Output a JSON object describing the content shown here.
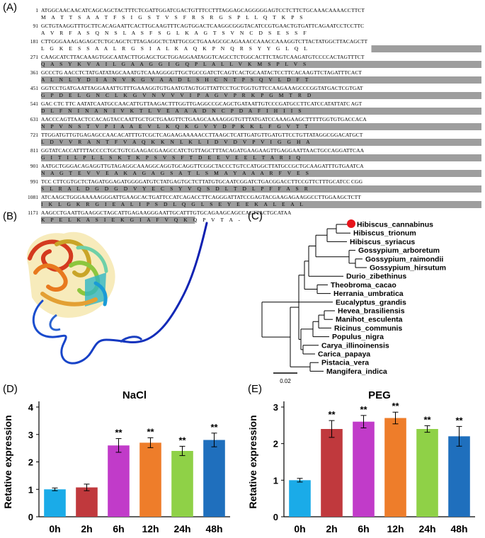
{
  "panels": {
    "A": "(A)",
    "B": "(B)",
    "C": "(C)",
    "D": "(D)",
    "E": "(E)"
  },
  "sequence_rows": [
    {
      "num": "1",
      "nt": "ATGGCAACAACATCAGCAGCTACTTTCTCGATTGGATCGACTGTTTCCTTTAGGAGCAGGGGGAGTCCTCTTCTGCAAACAAAACCTTCT",
      "aa": "M A T T S A A T F S I G S T V S F R S R G S P L L Q T K P S",
      "hl": "none"
    },
    {
      "num": "91",
      "nt": "GCTGTAAGGTTTGCTTCACAGAATTCACTTGCAAGTTTCAGTGGACTCAAGGCGGGTACATCCGTGAACTGTGATTCAGAATCCTCCTTC",
      "aa": "A V R F A S Q N S L A S F S G L K A G T S V N C D S E S S F",
      "hl": "none"
    },
    {
      "num": "181",
      "nt": "CTTGGGAAAGAGAGCTCTGCAGCTCTTAGAGGCTCTATTGCGCTGAAAGCGCAGAAACCAAACCAAAGGTCTTACTATGGCTTACAGCTT",
      "aa": "L G K E S S A A L R G S I A L K A Q K P N Q R S Y Y G L Q L",
      "hl": "part"
    },
    {
      "num": "271",
      "nt": "CAAGCATCTTACAAAGTGGCAATACTTGGAGCTGCTGGAGGAATAGGTCAGCCTCTGGCACTTCTAGTCAAGATGTCCCCACTAGTTTCT",
      "aa": "Q A S Y K V A I L G A A G G I G Q P L A L L V K M S P L V S",
      "hl": "full"
    },
    {
      "num": "361",
      "nt": "GCCCTG AACCTCTATGATATAGCAAATGTCAAAGGGGTTGCTGCCGATCTCAGTCACTGCAATACTCCTTCACAAGTTCTAGATTTCACT",
      "aa": "A L N L Y D I A N V K G V A A D L S H C N T P S Q V L D F T",
      "hl": "full"
    },
    {
      "num": "451",
      "nt": "GGTCCTGATGAATTAGGAAATTGTTTGAAAGGTGTGAATGTAGTGGTTATTCCTGCTGGTGTTCCAAGAAAGCCCGGTATGACTCGTGAT",
      "aa": "G P D E L G N C L K G V N V V V I P A G V P R K P G M T R D",
      "hl": "full"
    },
    {
      "num": "541",
      "nt": "GAC CTC TTC AATATCAATGCCAACATTGTTAAGACTTTGGTTGAGGCCGCAGCTGATAATTGTCCCGATGCCTTCATCCATATTATC AGT",
      "aa": "D L F N I N A N I V K T L V E A A A D N C P D A F I H I I S",
      "hl": "full"
    },
    {
      "num": "631",
      "nt": "AACCCAGTTAACTCCACAGTACCAATTGCTGCTGAAGTTCTGAAGCAAAAGGGTGTTTATGATCCAAAGAAGCTTTTTGGTGTGACCACA",
      "aa": "N P V N S T V P I A A E V L K Q K G V Y D P K K L F G V T T",
      "hl": "full"
    },
    {
      "num": "721",
      "nt": "TTGGATGTTGTGAGAGCCAACACATTTGTCGCTCAGAAGAAAAACCTTAAGCTCATTGATGTTGATGTTCCTGTTATAGGCGGACATGCT",
      "aa": "L D V V R A N T F V A Q K K N L K L I D V D V P V I G G H A",
      "hl": "full"
    },
    {
      "num": "811",
      "nt": "GGTATCACCATTTTACCCCTGCTGTCGAAGACGAAGCCATCTGTTAGCTTTACAGATGAAGAAGTTGAGGAATTAACTGCCAGGATTCAA",
      "aa": "G I T I L P L L S K T K P S V S F T D E E V E E L T A R I Q",
      "hl": "full"
    },
    {
      "num": "901",
      "nt": "AATGCTGGGACAGAGGTTGTAGAGGCAAAGGCAGGTGCAGGTTCGGCTACCCTGTCCATGGCTTATGCCGCTGCAAGATTTGTGAATCA",
      "aa": "N A G T E V V E A K A G A G S A T L S M A Y A A A R F V E S",
      "hl": "full"
    },
    {
      "num": "991",
      "nt": "TCC CTTCGTGCTCTAGATGGAGATGGGGATGTCTATGAGTGCTCTTATGTGCAATCGGATCTGACGGACCTTCCGTTCTTTGCATCC CGG",
      "aa": "S L R A L D G D G D V Y E C S Y V Q S D L T D L P F F A S R",
      "hl": "full"
    },
    {
      "num": "1081",
      "nt": "ATCAAGCTGGGAAAAAGGGATTGAAGCACTGATTCCATCAGACCTTCAGGGATTATCCGAGTACGAAGAGAAGGCCTTGGAAGCTCTT",
      "aa": "I K L G K R G I E A L I P S D L Q G L S E Y E E K A L E A L",
      "hl": "full"
    },
    {
      "num": "1171",
      "nt": "AAGCCTGAATTGAAGGCTAGCATTGAGAAGGGAATTGCATTTGTGCAGAAGCAGCCAGTTACTGCATAA",
      "aa": "K P E L K A S I E K G I A F V Q K Q P V T A -",
      "hl": "end"
    }
  ],
  "tree": {
    "taxa": [
      "Hibiscus_cannabinus",
      "Hibiscus_trionum",
      "Hibiscus_syriacus",
      "Gossypium_arboretum",
      "Gossypium_raimondii",
      "Gossypium_hirsutum",
      "Durio_zibethinus",
      "Theobroma_cacao",
      "Herrania_umbratica",
      "Eucalyptus_grandis",
      "Hevea_brasiliensis",
      "Manihot_esculenta",
      "Ricinus_communis",
      "Populus_nigra",
      "Carya_illinoinensis",
      "Carica_papaya",
      "Pistacia_vera",
      "Mangifera_indica"
    ],
    "highlight_color": "#e8141b",
    "scale_label": "0.02"
  },
  "chart_data": [
    {
      "type": "bar",
      "title": "NaCl",
      "xlabel": "",
      "ylabel": "Retative expression",
      "categories": [
        "0h",
        "2h",
        "6h",
        "12h",
        "24h",
        "48h"
      ],
      "values": [
        1.0,
        1.07,
        2.6,
        2.7,
        2.4,
        2.8
      ],
      "errors": [
        0.05,
        0.12,
        0.25,
        0.18,
        0.17,
        0.25
      ],
      "significance": [
        "",
        "",
        "**",
        "**",
        "**",
        "**"
      ],
      "colors": [
        "#1aabe8",
        "#c0393d",
        "#c13bc9",
        "#ee7d2a",
        "#8fd147",
        "#1f6fbd"
      ],
      "ylim": [
        0,
        4
      ],
      "yticks": [
        0,
        1,
        2,
        3,
        4
      ]
    },
    {
      "type": "bar",
      "title": "PEG",
      "xlabel": "",
      "ylabel": "Retative expression",
      "categories": [
        "0h",
        "2h",
        "6h",
        "12h",
        "24h",
        "48h"
      ],
      "values": [
        1.0,
        2.4,
        2.6,
        2.7,
        2.4,
        2.2
      ],
      "errors": [
        0.05,
        0.23,
        0.17,
        0.16,
        0.09,
        0.27
      ],
      "significance": [
        "",
        "**",
        "**",
        "**",
        "**",
        "**"
      ],
      "colors": [
        "#1aabe8",
        "#c0393d",
        "#c13bc9",
        "#ee7d2a",
        "#8fd147",
        "#1f6fbd"
      ],
      "ylim": [
        0,
        3
      ],
      "yticks": [
        0,
        1,
        2,
        3
      ]
    }
  ]
}
